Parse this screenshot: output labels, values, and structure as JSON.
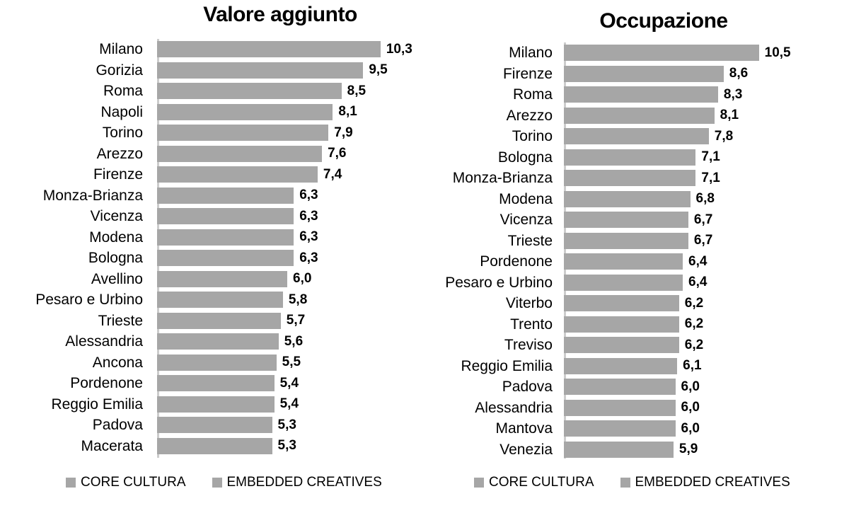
{
  "colors": {
    "bar": "#a6a6a6",
    "axis_line": "#cccccc",
    "legend_swatch": "#a6a6a6",
    "text": "#000000",
    "background": "#ffffff"
  },
  "chart_data": [
    {
      "type": "bar",
      "orientation": "horizontal",
      "title": "Valore aggiunto",
      "xlabel": "",
      "ylabel": "",
      "xlim": [
        0,
        12
      ],
      "grid": false,
      "legend_position": "bottom",
      "legend": [
        "CORE CULTURA",
        "EMBEDDED CREATIVES"
      ],
      "categories": [
        "Milano",
        "Gorizia",
        "Roma",
        "Napoli",
        "Torino",
        "Arezzo",
        "Firenze",
        "Monza-Brianza",
        "Vicenza",
        "Modena",
        "Bologna",
        "Avellino",
        "Pesaro e Urbino",
        "Trieste",
        "Alessandria",
        "Ancona",
        "Pordenone",
        "Reggio Emilia",
        "Padova",
        "Macerata"
      ],
      "values": [
        10.3,
        9.5,
        8.5,
        8.1,
        7.9,
        7.6,
        7.4,
        6.3,
        6.3,
        6.3,
        6.3,
        6.0,
        5.8,
        5.7,
        5.6,
        5.5,
        5.4,
        5.4,
        5.3,
        5.3
      ],
      "value_labels": [
        "10,3",
        "9,5",
        "8,5",
        "8,1",
        "7,9",
        "7,6",
        "7,4",
        "6,3",
        "6,3",
        "6,3",
        "6,3",
        "6,0",
        "5,8",
        "5,7",
        "5,6",
        "5,5",
        "5,4",
        "5,4",
        "5,3",
        "5,3"
      ]
    },
    {
      "type": "bar",
      "orientation": "horizontal",
      "title": "Occupazione",
      "xlabel": "",
      "ylabel": "",
      "xlim": [
        0,
        12
      ],
      "grid": false,
      "legend_position": "bottom",
      "legend": [
        "CORE CULTURA",
        "EMBEDDED CREATIVES"
      ],
      "categories": [
        "Milano",
        "Firenze",
        "Roma",
        "Arezzo",
        "Torino",
        "Bologna",
        "Monza-Brianza",
        "Modena",
        "Vicenza",
        "Trieste",
        "Pordenone",
        "Pesaro e Urbino",
        "Viterbo",
        "Trento",
        "Treviso",
        "Reggio Emilia",
        "Padova",
        "Alessandria",
        "Mantova",
        "Venezia"
      ],
      "values": [
        10.5,
        8.6,
        8.3,
        8.1,
        7.8,
        7.1,
        7.1,
        6.8,
        6.7,
        6.7,
        6.4,
        6.4,
        6.2,
        6.2,
        6.2,
        6.1,
        6.0,
        6.0,
        6.0,
        5.9
      ],
      "value_labels": [
        "10,5",
        "8,6",
        "8,3",
        "8,1",
        "7,8",
        "7,1",
        "7,1",
        "6,8",
        "6,7",
        "6,7",
        "6,4",
        "6,4",
        "6,2",
        "6,2",
        "6,2",
        "6,1",
        "6,0",
        "6,0",
        "6,0",
        "5,9"
      ]
    }
  ]
}
